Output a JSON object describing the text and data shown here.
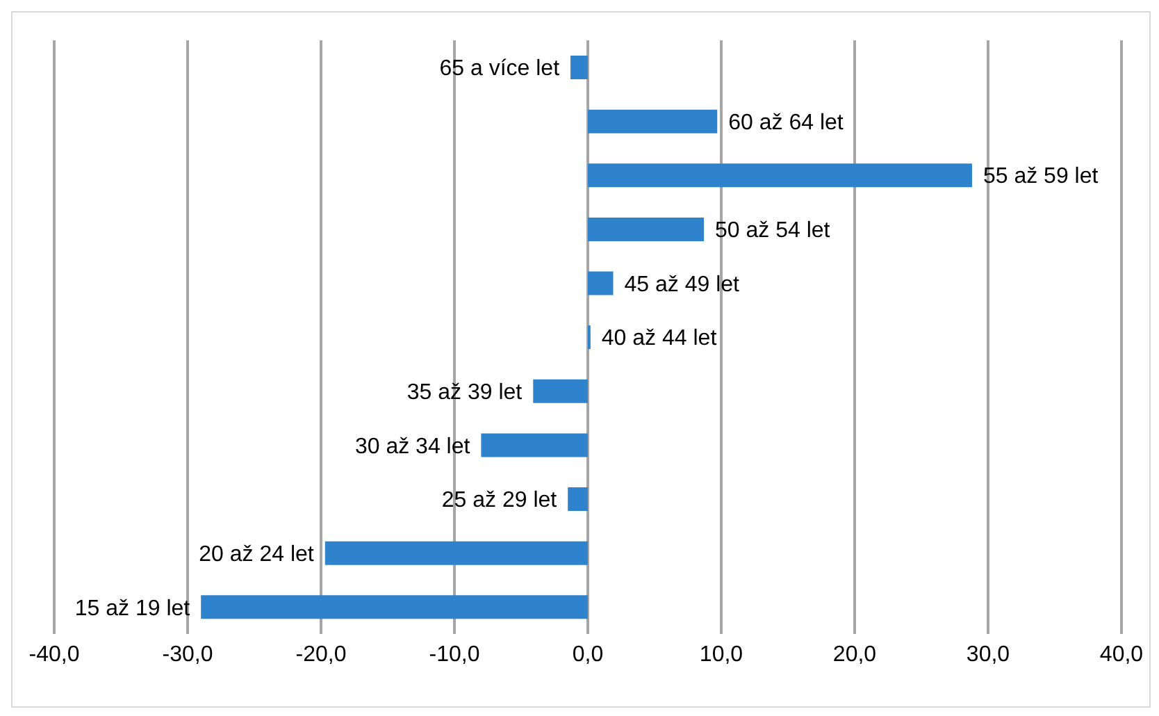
{
  "chart_data": {
    "type": "bar",
    "orientation": "horizontal",
    "categories": [
      "65 a více let",
      "60 až 64 let",
      "55 až 59 let",
      "50 až 54 let",
      "45 až 49 let",
      "40 až 44 let",
      "35 až 39 let",
      "30 až 34 let",
      "25 až 29 let",
      "20 až 24 let",
      "15 až 19 let"
    ],
    "values": [
      -1.3,
      9.7,
      28.8,
      8.7,
      1.9,
      0.2,
      -4.1,
      -8.0,
      -1.5,
      -19.7,
      -29.0
    ],
    "color": "#2e83cc",
    "xlim": [
      -40,
      40
    ],
    "xticks": [
      {
        "value": -40,
        "label": "-40,0"
      },
      {
        "value": -30,
        "label": "-30,0"
      },
      {
        "value": -20,
        "label": "-20,0"
      },
      {
        "value": -10,
        "label": "-10,0"
      },
      {
        "value": 0,
        "label": "0,0"
      },
      {
        "value": 10,
        "label": "10,0"
      },
      {
        "value": 20,
        "label": "20,0"
      },
      {
        "value": 30,
        "label": "30,0"
      },
      {
        "value": 40,
        "label": "40,0"
      }
    ],
    "grid": "x",
    "tick_labels": "x"
  }
}
